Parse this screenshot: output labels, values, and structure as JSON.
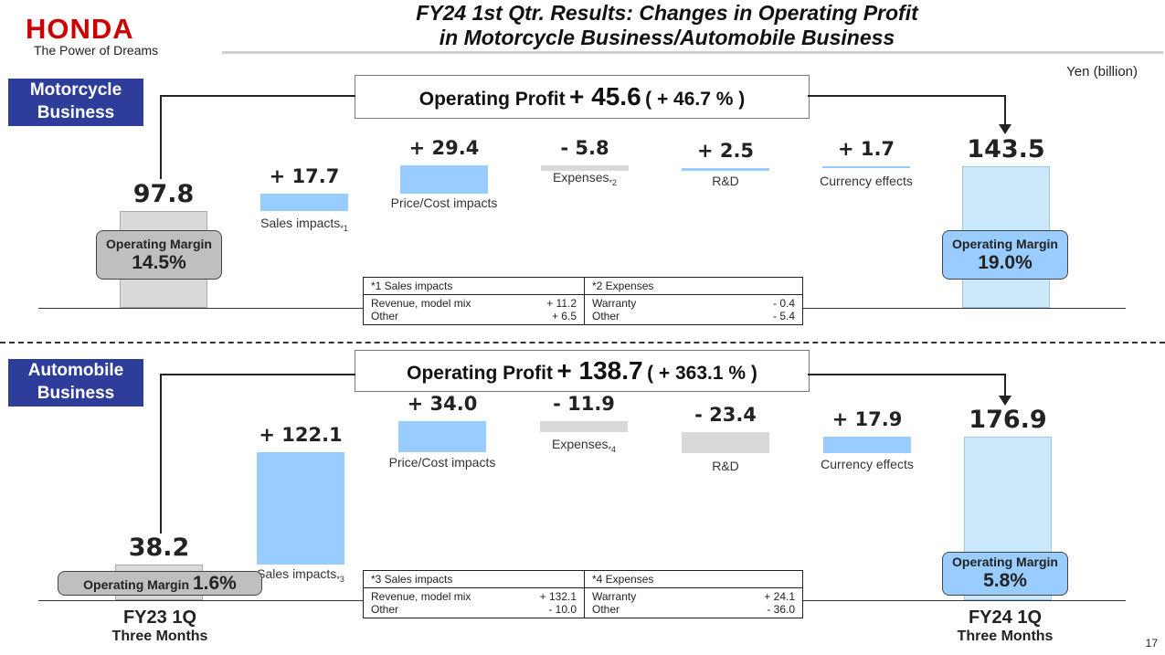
{
  "header": {
    "logo_word": "HONDA",
    "logo_tagline": "The Power of Dreams",
    "title_line1": "FY24 1st Qtr. Results: Changes in Operating Profit",
    "title_line2": "in Motorcycle Business/Automobile Business",
    "unit": "Yen (billion)"
  },
  "colors": {
    "increase": "#99ccff",
    "decrease": "#d9d9d9",
    "fy23_bar": "#d9d9d9",
    "fy24_bar": "#cce8fb",
    "section_tag": "#2e3d9a",
    "logo": "#cc0000"
  },
  "x_axis": {
    "fy23": "FY23 1Q",
    "fy23_sub": "Three Months",
    "fy24": "FY24 1Q",
    "fy24_sub": "Three Months"
  },
  "margin_label": "Operating Margin",
  "page_number": "17",
  "chart_data": [
    {
      "type": "bar",
      "subtype": "waterfall",
      "section": "Motorcycle Business",
      "op_label": "Operating Profit",
      "op_change": "+ 45.6",
      "op_change_pct": "( + 46.7 % )",
      "start": {
        "label": "FY23 1Q",
        "value": 97.8,
        "display": "97.8",
        "margin": "14.5%"
      },
      "steps": [
        {
          "label": "Sales impacts",
          "note": "*1",
          "value": 17.7,
          "display": "+ 17.7"
        },
        {
          "label": "Price/Cost impacts",
          "value": 29.4,
          "display": "+ 29.4"
        },
        {
          "label": "Expenses",
          "note": "*2",
          "value": -5.8,
          "display": "- 5.8"
        },
        {
          "label": "R&D",
          "value": 2.5,
          "display": "+ 2.5"
        },
        {
          "label": "Currency effects",
          "value": 1.7,
          "display": "+ 1.7"
        }
      ],
      "end": {
        "label": "FY24 1Q",
        "value": 143.5,
        "display": "143.5",
        "margin": "19.0%"
      },
      "footnotes": [
        {
          "title": "*1 Sales impacts",
          "rows": [
            {
              "name": "Revenue, model mix",
              "value": "+ 11.2"
            },
            {
              "name": "Other",
              "value": "+ 6.5"
            }
          ]
        },
        {
          "title": "*2 Expenses",
          "rows": [
            {
              "name": "Warranty",
              "value": "- 0.4"
            },
            {
              "name": "Other",
              "value": "- 5.4"
            }
          ]
        }
      ]
    },
    {
      "type": "bar",
      "subtype": "waterfall",
      "section": "Automobile Business",
      "op_label": "Operating Profit",
      "op_change": "+ 138.7",
      "op_change_pct": "( + 363.1 % )",
      "start": {
        "label": "FY23 1Q",
        "value": 38.2,
        "display": "38.2",
        "margin": "1.6%"
      },
      "steps": [
        {
          "label": "Sales impacts",
          "note": "*3",
          "value": 122.1,
          "display": "+ 122.1"
        },
        {
          "label": "Price/Cost impacts",
          "value": 34.0,
          "display": "+ 34.0"
        },
        {
          "label": "Expenses",
          "note": "*4",
          "value": -11.9,
          "display": "- 11.9"
        },
        {
          "label": "R&D",
          "value": -23.4,
          "display": "- 23.4"
        },
        {
          "label": "Currency effects",
          "value": 17.9,
          "display": "+ 17.9"
        }
      ],
      "end": {
        "label": "FY24 1Q",
        "value": 176.9,
        "display": "176.9",
        "margin": "5.8%"
      },
      "footnotes": [
        {
          "title": "*3 Sales impacts",
          "rows": [
            {
              "name": "Revenue, model mix",
              "value": "+ 132.1"
            },
            {
              "name": "Other",
              "value": "- 10.0"
            }
          ]
        },
        {
          "title": "*4 Expenses",
          "rows": [
            {
              "name": "Warranty",
              "value": "+ 24.1"
            },
            {
              "name": "Other",
              "value": "- 36.0"
            }
          ]
        }
      ]
    }
  ]
}
